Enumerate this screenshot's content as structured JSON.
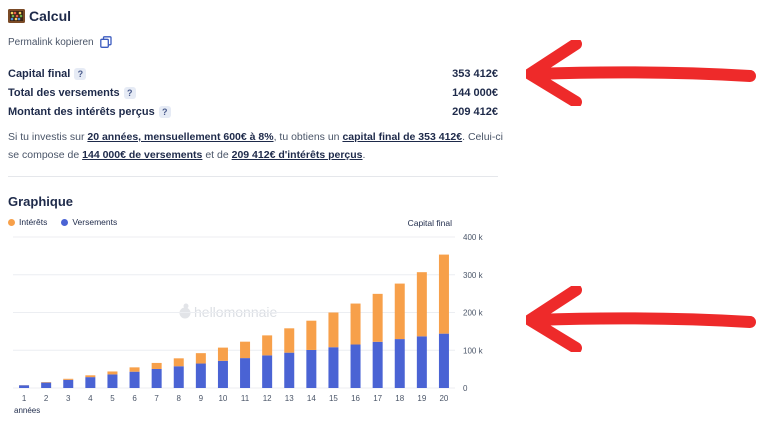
{
  "calc": {
    "title": "Calcul",
    "permalink_label": "Permalink kopieren"
  },
  "results": [
    {
      "label": "Capital final",
      "value": "353 412€"
    },
    {
      "label": "Total des versements",
      "value": "144 000€"
    },
    {
      "label": "Montant des intérêts perçus",
      "value": "209 412€"
    }
  ],
  "help_glyph": "?",
  "summary": {
    "t1": "Si tu investis sur ",
    "b1": "20 années, mensuellement 600€ à 8%",
    "t2": ", tu obtiens un ",
    "b2": "capital final de 353 412€",
    "t3": ". Celui-ci se compose de ",
    "b3": "144 000€ de versements",
    "t4": " et de ",
    "b4": "209 412€ d'intérêts perçus",
    "t5": "."
  },
  "graph": {
    "title": "Graphique",
    "legend": [
      {
        "label": "Intérêts",
        "color": "#f7a04a"
      },
      {
        "label": "Versements",
        "color": "#4a63d4"
      }
    ],
    "right_axis_title": "Capital final",
    "x_axis_title": "années",
    "watermark": "hellomonnaie"
  },
  "colors": {
    "interets": "#f7a04a",
    "versements": "#4a63d4",
    "arrow": "#ee2a2a"
  },
  "chart_data": {
    "type": "bar",
    "stacked": true,
    "categories": [
      "1",
      "2",
      "3",
      "4",
      "5",
      "6",
      "7",
      "8",
      "9",
      "10",
      "11",
      "12",
      "13",
      "14",
      "15",
      "16",
      "17",
      "18",
      "19",
      "20"
    ],
    "series": [
      {
        "name": "Versements",
        "values": [
          7200,
          14400,
          21600,
          28800,
          36000,
          43200,
          50400,
          57600,
          64800,
          72000,
          79200,
          86400,
          93600,
          100800,
          108000,
          115200,
          122400,
          129600,
          136800,
          144000
        ]
      },
      {
        "name": "Intérêts",
        "values": [
          300,
          1200,
          2800,
          4800,
          7800,
          11500,
          16000,
          21000,
          27500,
          35000,
          43500,
          53000,
          64500,
          77500,
          92000,
          108500,
          127000,
          147000,
          170000,
          209412
        ]
      }
    ],
    "yticks": [
      "0",
      "100 k",
      "200 k",
      "300 k",
      "400 k"
    ],
    "ylim": [
      0,
      400000
    ],
    "y_axis_position": "right",
    "grid": true,
    "legend_position": "top-left"
  }
}
